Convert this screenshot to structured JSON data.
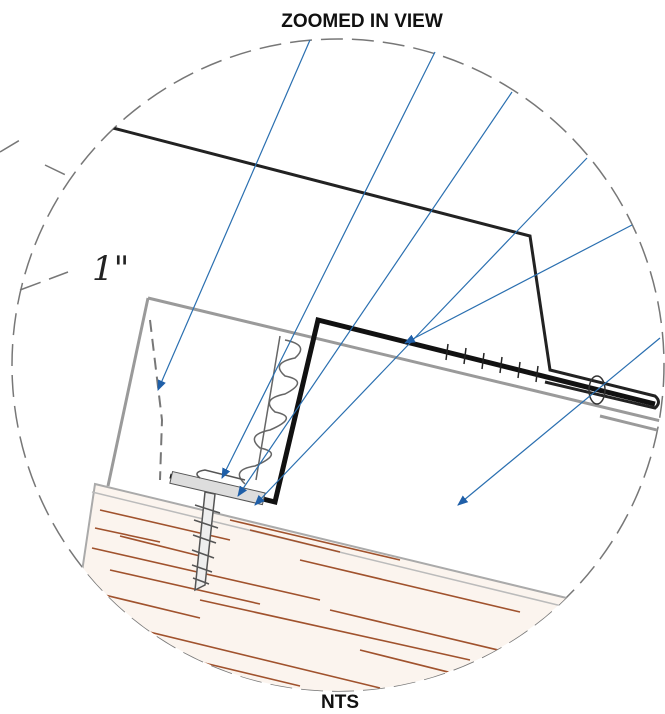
{
  "header": {
    "title": "ZOOMED IN VIEW"
  },
  "callout": {
    "dimension": "1\""
  },
  "footer": {
    "scale": "NTS"
  }
}
